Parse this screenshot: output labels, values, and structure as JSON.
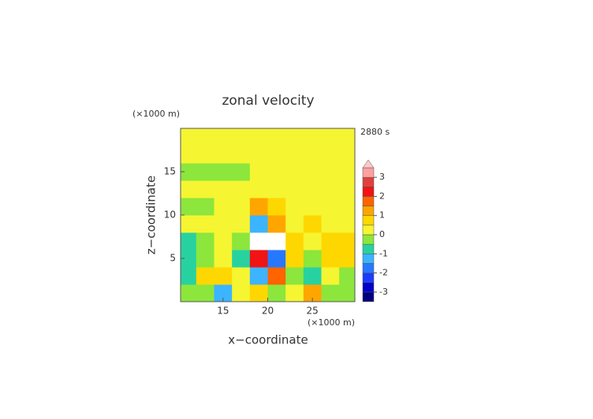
{
  "chart_data": {
    "type": "contour",
    "title": "zonal velocity",
    "time_label": "2880 s",
    "x_label": "x−coordinate",
    "y_label": "z−coordinate",
    "x_unit": "(×1000 m)",
    "y_unit": "(×1000 m)",
    "xlim": [
      10.25,
      29.75
    ],
    "ylim": [
      0,
      20
    ],
    "xticks": [
      15,
      20,
      25
    ],
    "yticks": [
      5,
      10,
      15
    ],
    "x": [
      11,
      13,
      15,
      17,
      19,
      21,
      23,
      25,
      27,
      29
    ],
    "y": [
      1,
      3,
      5,
      7,
      9,
      11,
      13,
      15,
      17,
      19
    ],
    "z": [
      [
        -0.5,
        -0.3,
        -1.5,
        0.2,
        0.5,
        -0.5,
        0.3,
        1.2,
        -0.4,
        -0.2
      ],
      [
        -0.8,
        0.6,
        0.9,
        0.1,
        -1.5,
        1.5,
        -0.2,
        -1.0,
        0.3,
        -0.3
      ],
      [
        -0.7,
        -0.3,
        0.4,
        -0.8,
        2.0,
        -2.0,
        0.6,
        -0.3,
        0.7,
        0.6
      ],
      [
        -0.6,
        -0.4,
        0.2,
        -0.5,
        -3.8,
        3.8,
        0.5,
        0.4,
        0.6,
        0.5
      ],
      [
        0.1,
        0.2,
        0.3,
        0.1,
        -1.5,
        1.2,
        0.4,
        0.5,
        0.4,
        0.4
      ],
      [
        -0.2,
        -0.2,
        0,
        0.2,
        1.0,
        0.8,
        0.2,
        0.3,
        0.3,
        0.3
      ],
      [
        0.2,
        0.2,
        0.3,
        0.3,
        0.3,
        0.3,
        0.3,
        0.1,
        0.1,
        0.1
      ],
      [
        -0.1,
        -0.1,
        -0.1,
        -0.1,
        0.1,
        0.1,
        0.1,
        0.1,
        0.1,
        0.1
      ],
      [
        0.1,
        0.1,
        0.1,
        0.1,
        0.1,
        0.1,
        0.1,
        0.1,
        0.1,
        0.1
      ],
      [
        0.3,
        0.3,
        0.3,
        0.3,
        0.3,
        0.3,
        0.3,
        0.3,
        0.3,
        0.3
      ]
    ],
    "clim": [
      -3.5,
      3.5
    ],
    "cticks": [
      3,
      2,
      1,
      0,
      -1,
      -2,
      -3
    ],
    "colors": [
      "#000080",
      "#0000c8",
      "#1e3cff",
      "#2878ff",
      "#3cb4ff",
      "#28d2a0",
      "#8ce63c",
      "#f5f532",
      "#ffd700",
      "#ffa500",
      "#ff6400",
      "#f01414",
      "#e04040",
      "#ffa0a0"
    ],
    "extend_color": "#ffc8c8"
  }
}
